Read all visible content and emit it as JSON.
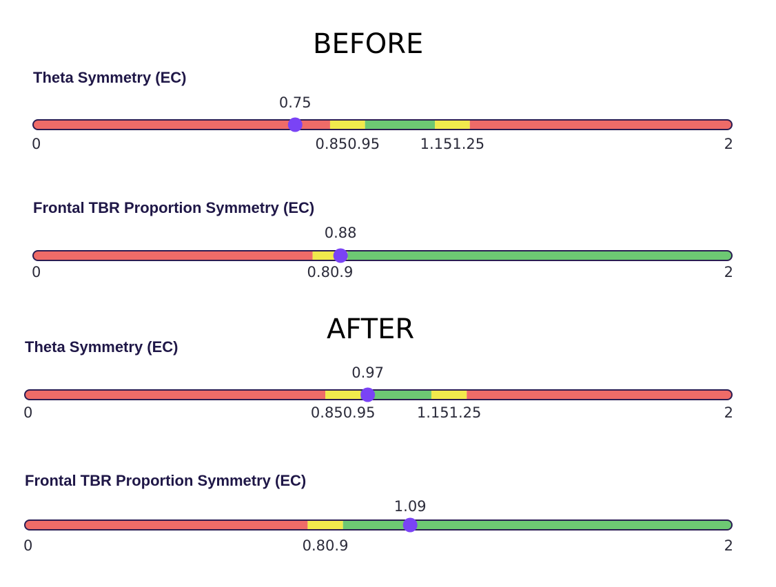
{
  "headings": {
    "before": "BEFORE",
    "after": "AFTER"
  },
  "colors": {
    "red": "#ef6b68",
    "yellow": "#f1ea4c",
    "green": "#6dc873",
    "marker": "#7a43f5",
    "outline": "#2a1c52"
  },
  "chart_data": [
    {
      "type": "bar",
      "section": "BEFORE",
      "title": "Theta Symmetry (EC)",
      "xlim": [
        0,
        2
      ],
      "value": 0.75,
      "value_label": "0.75",
      "zones": [
        {
          "from": 0,
          "to": 0.85,
          "color": "red"
        },
        {
          "from": 0.85,
          "to": 0.95,
          "color": "yellow"
        },
        {
          "from": 0.95,
          "to": 1.15,
          "color": "green"
        },
        {
          "from": 1.15,
          "to": 1.25,
          "color": "yellow"
        },
        {
          "from": 1.25,
          "to": 2,
          "color": "red"
        }
      ],
      "ticks": [
        {
          "value": 0,
          "label": "0"
        },
        {
          "value": 0.85,
          "label": "0.85"
        },
        {
          "value": 0.95,
          "label": "0.95"
        },
        {
          "value": 1.15,
          "label": "1.15"
        },
        {
          "value": 1.25,
          "label": "1.25"
        },
        {
          "value": 2,
          "label": "2"
        }
      ]
    },
    {
      "type": "bar",
      "section": "BEFORE",
      "title": "Frontal TBR Proportion Symmetry (EC)",
      "xlim": [
        0,
        2
      ],
      "value": 0.88,
      "value_label": "0.88",
      "zones": [
        {
          "from": 0,
          "to": 0.8,
          "color": "red"
        },
        {
          "from": 0.8,
          "to": 0.9,
          "color": "yellow"
        },
        {
          "from": 0.9,
          "to": 2,
          "color": "green"
        }
      ],
      "ticks": [
        {
          "value": 0,
          "label": "0"
        },
        {
          "value": 0.8,
          "label": "0.8"
        },
        {
          "value": 0.9,
          "label": "0.9"
        },
        {
          "value": 2,
          "label": "2"
        }
      ]
    },
    {
      "type": "bar",
      "section": "AFTER",
      "title": "Theta Symmetry (EC)",
      "xlim": [
        0,
        2
      ],
      "value": 0.97,
      "value_label": "0.97",
      "zones": [
        {
          "from": 0,
          "to": 0.85,
          "color": "red"
        },
        {
          "from": 0.85,
          "to": 0.95,
          "color": "yellow"
        },
        {
          "from": 0.95,
          "to": 1.15,
          "color": "green"
        },
        {
          "from": 1.15,
          "to": 1.25,
          "color": "yellow"
        },
        {
          "from": 1.25,
          "to": 2,
          "color": "red"
        }
      ],
      "ticks": [
        {
          "value": 0,
          "label": "0"
        },
        {
          "value": 0.85,
          "label": "0.85"
        },
        {
          "value": 0.95,
          "label": "0.95"
        },
        {
          "value": 1.15,
          "label": "1.15"
        },
        {
          "value": 1.25,
          "label": "1.25"
        },
        {
          "value": 2,
          "label": "2"
        }
      ]
    },
    {
      "type": "bar",
      "section": "AFTER",
      "title": "Frontal TBR Proportion Symmetry (EC)",
      "xlim": [
        0,
        2
      ],
      "value": 1.09,
      "value_label": "1.09",
      "zones": [
        {
          "from": 0,
          "to": 0.8,
          "color": "red"
        },
        {
          "from": 0.8,
          "to": 0.9,
          "color": "yellow"
        },
        {
          "from": 0.9,
          "to": 2,
          "color": "green"
        }
      ],
      "ticks": [
        {
          "value": 0,
          "label": "0"
        },
        {
          "value": 0.8,
          "label": "0.8"
        },
        {
          "value": 0.9,
          "label": "0.9"
        },
        {
          "value": 2,
          "label": "2"
        }
      ]
    }
  ]
}
